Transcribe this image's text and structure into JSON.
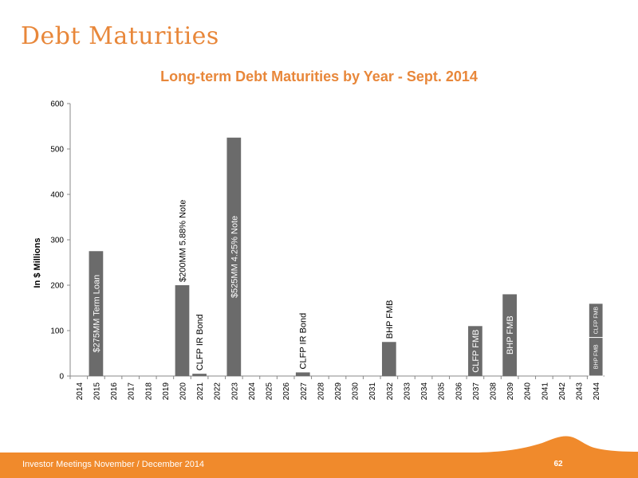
{
  "slide": {
    "title": "Debt Maturities",
    "footer": "Investor Meetings November / December 2014",
    "page_number": "62"
  },
  "colors": {
    "accent": "#e8873a",
    "bar": "#6b6b6b",
    "footer": "#f08a2c"
  },
  "chart_data": {
    "type": "bar",
    "title": "Long-term Debt Maturities by Year - Sept. 2014",
    "ylabel": "In $ Millions",
    "xlabel": "",
    "ylim": [
      0,
      600
    ],
    "yticks": [
      0,
      100,
      200,
      300,
      400,
      500,
      600
    ],
    "categories": [
      "2014",
      "2015",
      "2016",
      "2017",
      "2018",
      "2019",
      "2020",
      "2021",
      "2022",
      "2023",
      "2024",
      "2025",
      "2026",
      "2027",
      "2028",
      "2029",
      "2030",
      "2031",
      "2032",
      "2033",
      "2034",
      "2035",
      "2036",
      "2037",
      "2038",
      "2039",
      "2040",
      "2041",
      "2042",
      "2043",
      "2044"
    ],
    "bars": [
      {
        "category": "2015",
        "segments": [
          {
            "value": 275,
            "label": "$275MM Term Loan"
          }
        ]
      },
      {
        "category": "2020",
        "segments": [
          {
            "value": 200,
            "label": "$200MM 5.88% Note"
          }
        ]
      },
      {
        "category": "2021",
        "segments": [
          {
            "value": 5,
            "label": "CLFP IR Bond"
          }
        ]
      },
      {
        "category": "2023",
        "segments": [
          {
            "value": 525,
            "label": "$525MM 4.25% Note"
          }
        ]
      },
      {
        "category": "2027",
        "segments": [
          {
            "value": 8,
            "label": "CLFP IR Bond"
          }
        ]
      },
      {
        "category": "2032",
        "segments": [
          {
            "value": 75,
            "label": "BHP FMB"
          }
        ]
      },
      {
        "category": "2037",
        "segments": [
          {
            "value": 110,
            "label": "CLFP FMB"
          }
        ]
      },
      {
        "category": "2039",
        "segments": [
          {
            "value": 180,
            "label": "BHP FMB"
          }
        ]
      },
      {
        "category": "2044",
        "segments": [
          {
            "value": 85,
            "label": "BHP FMB"
          },
          {
            "value": 75,
            "label": "CLFP FMB"
          }
        ]
      }
    ]
  }
}
